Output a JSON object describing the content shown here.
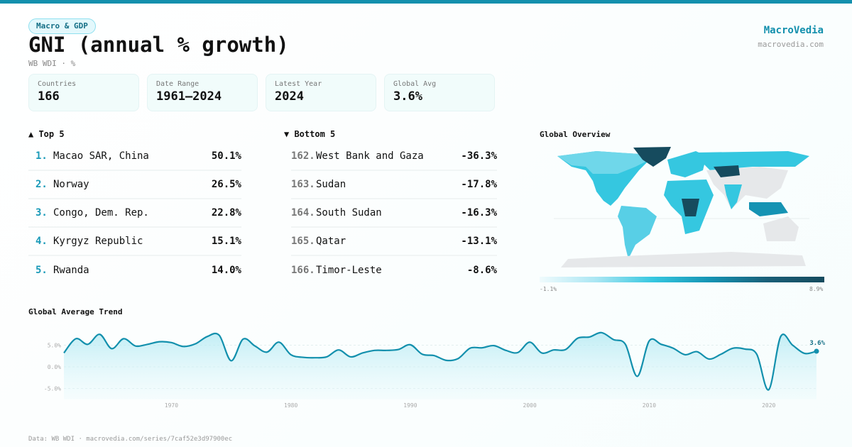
{
  "header": {
    "category": "Macro & GDP",
    "title": "GNI (annual % growth)",
    "subtitle": "WB WDI · %",
    "brand": "MacroVedia",
    "brand_url": "macrovedia.com"
  },
  "stats": [
    {
      "label": "Countries",
      "value": "166"
    },
    {
      "label": "Date Range",
      "value": "1961–2024"
    },
    {
      "label": "Latest Year",
      "value": "2024"
    },
    {
      "label": "Global Avg",
      "value": "3.6%"
    }
  ],
  "top": {
    "title": "▲ Top 5",
    "items": [
      {
        "rank": "1.",
        "name": "Macao SAR, China",
        "value": "50.1%"
      },
      {
        "rank": "2.",
        "name": "Norway",
        "value": "26.5%"
      },
      {
        "rank": "3.",
        "name": "Congo, Dem. Rep.",
        "value": "22.8%"
      },
      {
        "rank": "4.",
        "name": "Kyrgyz Republic",
        "value": "15.1%"
      },
      {
        "rank": "5.",
        "name": "Rwanda",
        "value": "14.0%"
      }
    ]
  },
  "bottom": {
    "title": "▼ Bottom 5",
    "items": [
      {
        "rank": "162.",
        "name": "West Bank and Gaza",
        "value": "-36.3%"
      },
      {
        "rank": "163.",
        "name": "Sudan",
        "value": "-17.8%"
      },
      {
        "rank": "164.",
        "name": "South Sudan",
        "value": "-16.3%"
      },
      {
        "rank": "165.",
        "name": "Qatar",
        "value": "-13.1%"
      },
      {
        "rank": "166.",
        "name": "Timor-Leste",
        "value": "-8.6%"
      }
    ]
  },
  "map": {
    "title": "Global Overview",
    "legend_min": "-1.1%",
    "legend_max": "8.9%",
    "colors": [
      "#f0fbfd",
      "#35c7e0",
      "#164b5e"
    ],
    "no_data_color": "#e6e8ea"
  },
  "chart_data": {
    "type": "area",
    "title": "Global Average Trend",
    "x": [
      1961,
      1962,
      1963,
      1964,
      1965,
      1966,
      1967,
      1968,
      1969,
      1970,
      1971,
      1972,
      1973,
      1974,
      1975,
      1976,
      1977,
      1978,
      1979,
      1980,
      1981,
      1982,
      1983,
      1984,
      1985,
      1986,
      1987,
      1988,
      1989,
      1990,
      1991,
      1992,
      1993,
      1994,
      1995,
      1996,
      1997,
      1998,
      1999,
      2000,
      2001,
      2002,
      2003,
      2004,
      2005,
      2006,
      2007,
      2008,
      2009,
      2010,
      2011,
      2012,
      2013,
      2014,
      2015,
      2016,
      2017,
      2018,
      2019,
      2020,
      2021,
      2022,
      2023,
      2024
    ],
    "values": [
      3.2,
      6.5,
      5.2,
      7.5,
      4.2,
      6.5,
      4.8,
      5.2,
      5.8,
      5.6,
      4.7,
      5.3,
      7.0,
      7.3,
      1.4,
      6.4,
      4.8,
      3.4,
      5.7,
      2.8,
      2.2,
      2.1,
      2.3,
      3.9,
      2.3,
      3.2,
      3.8,
      3.8,
      4.0,
      5.1,
      2.9,
      2.6,
      1.5,
      1.9,
      4.3,
      4.4,
      4.9,
      3.8,
      3.3,
      5.7,
      3.2,
      3.9,
      4.0,
      6.6,
      6.9,
      7.9,
      6.3,
      5.2,
      -2.2,
      6.0,
      5.2,
      4.3,
      2.8,
      3.5,
      1.8,
      2.9,
      4.3,
      4.1,
      2.9,
      -5.3,
      7.0,
      5.0,
      3.1,
      3.6
    ],
    "yticks": [
      "5.0%",
      "0.0%",
      "-5.0%"
    ],
    "ytick_values": [
      5,
      0,
      -5
    ],
    "xticks": [
      "1970",
      "1980",
      "1990",
      "2000",
      "2010",
      "2020"
    ],
    "xtick_values": [
      1970,
      1980,
      1990,
      2000,
      2010,
      2020
    ],
    "ylim": [
      -7,
      8
    ],
    "xlim": [
      1961,
      2024
    ],
    "last_label": "3.6%",
    "line_color": "#1390ad",
    "grid": true
  },
  "footer": "Data: WB WDI · macrovedia.com/series/7caf52e3d97900ec"
}
